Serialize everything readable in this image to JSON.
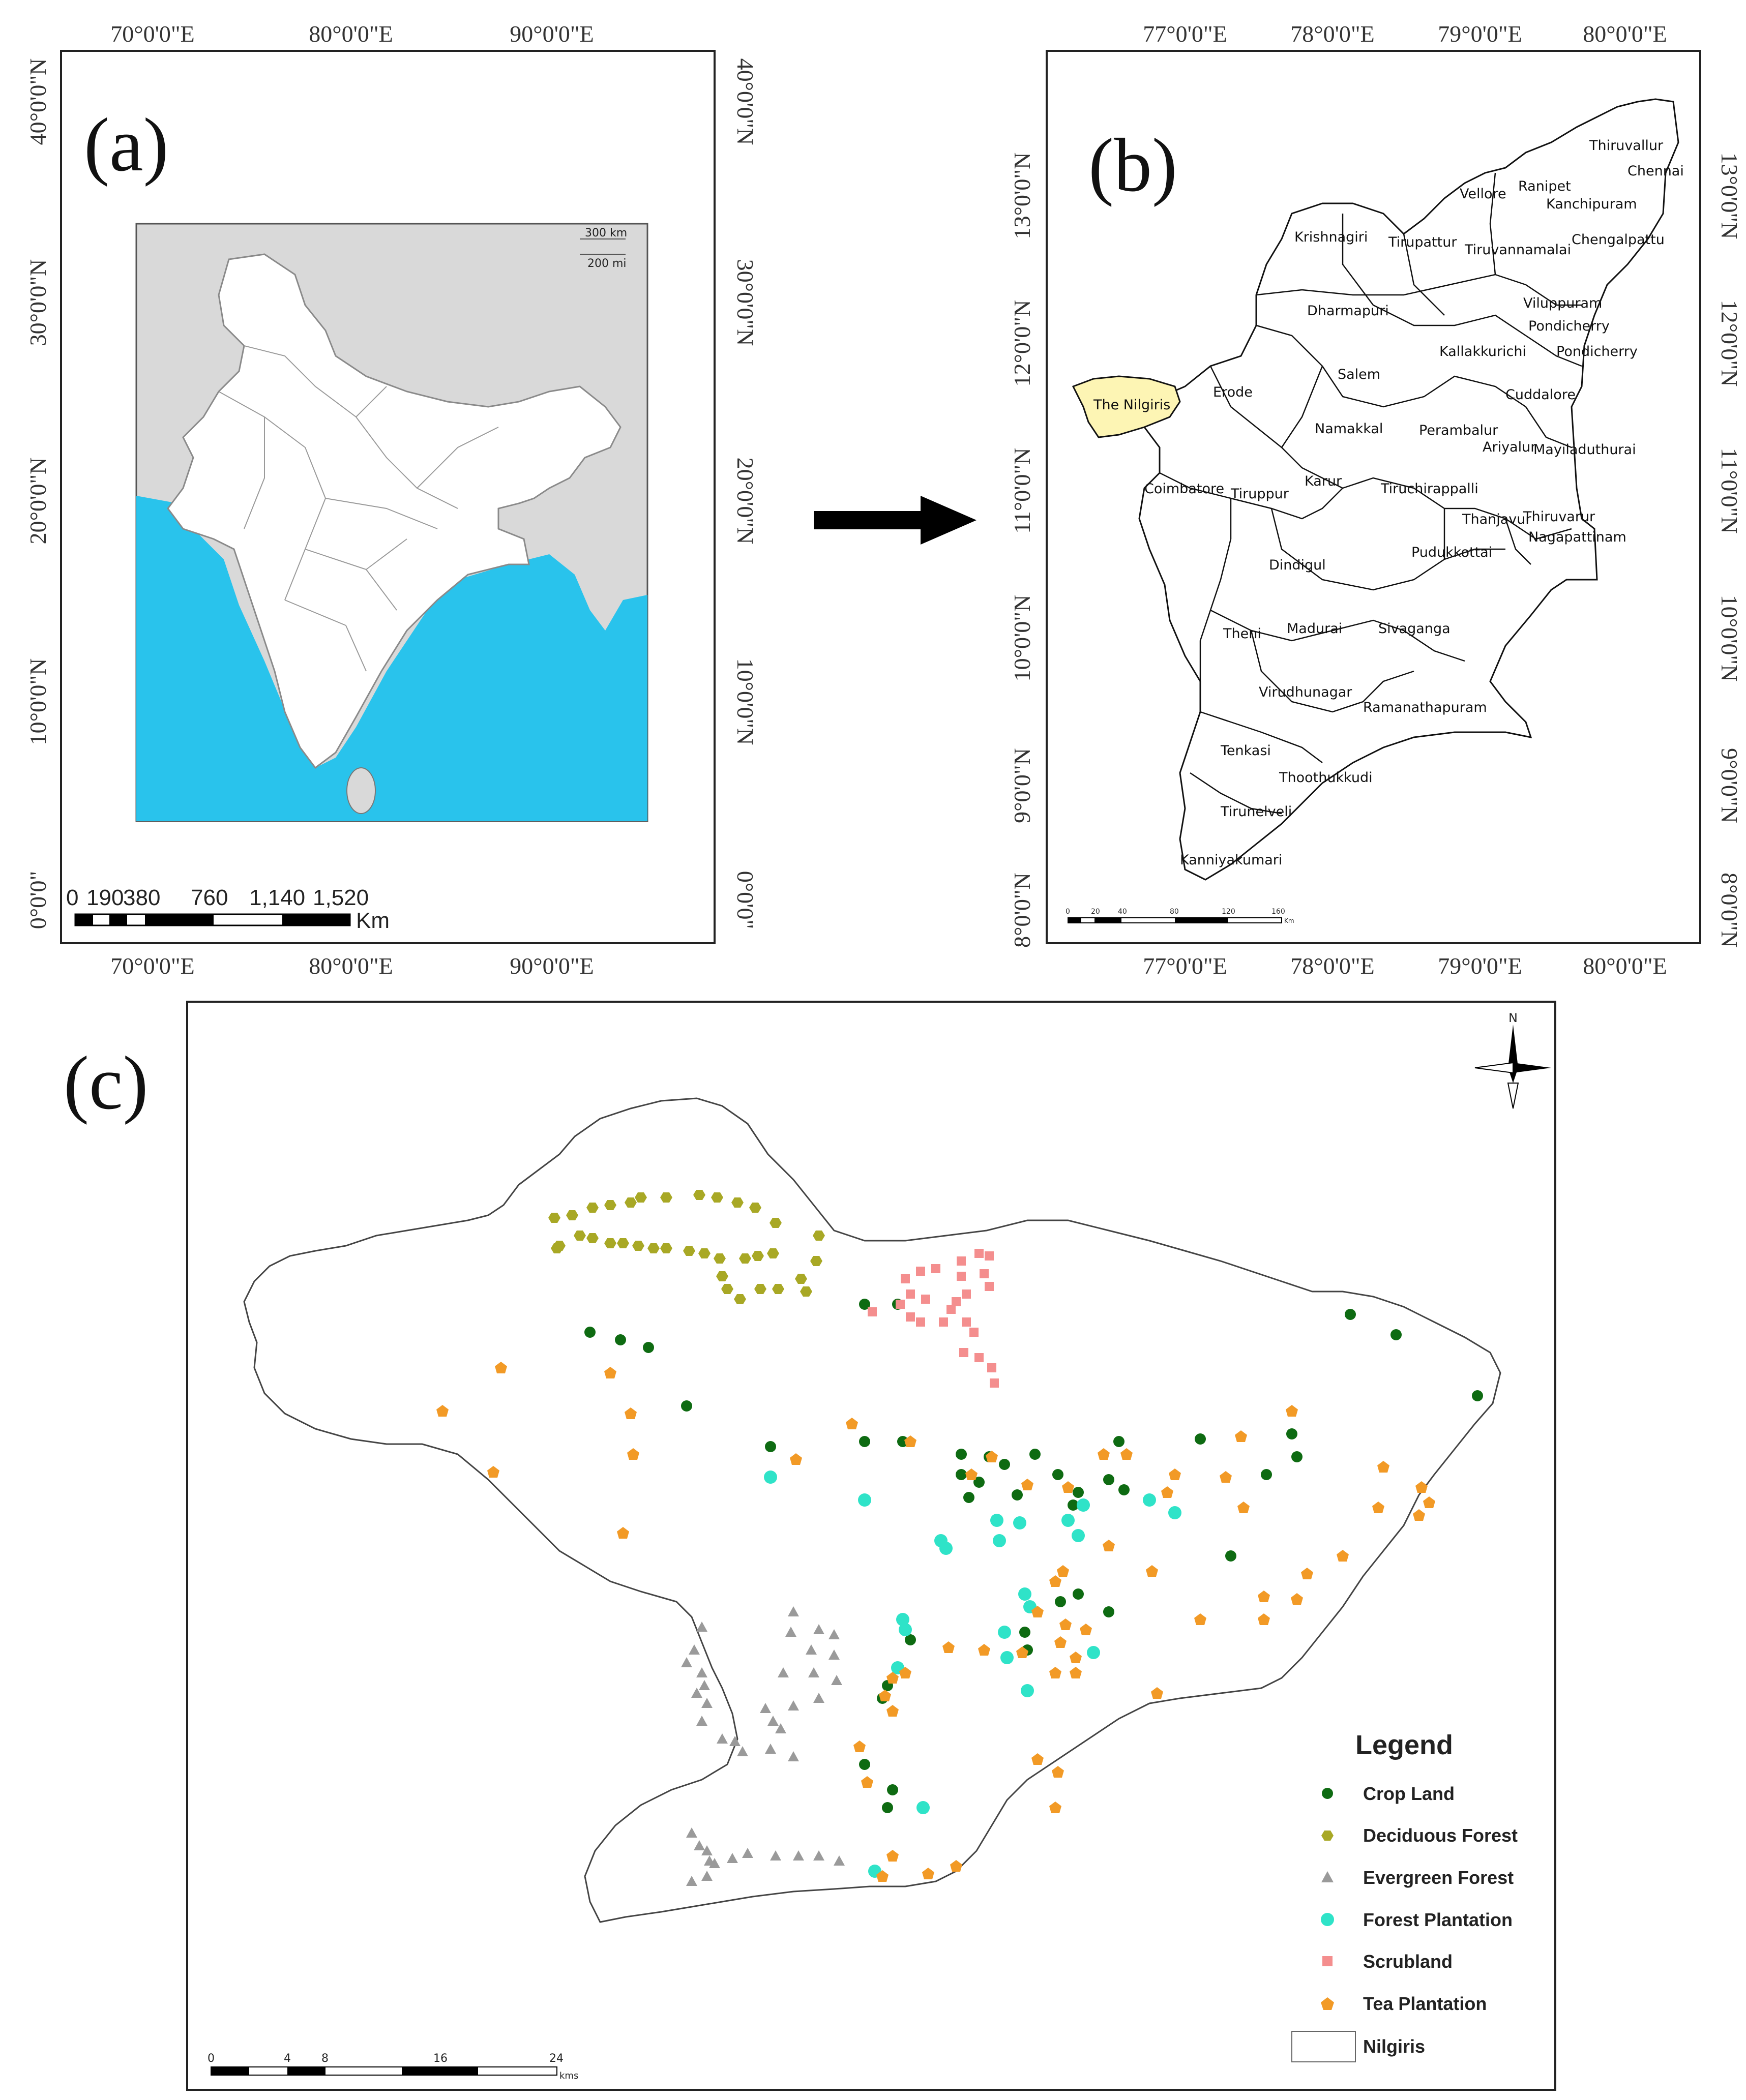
{
  "panel_a": {
    "label": "(a)",
    "top_ticks": [
      "70°0'0\"E",
      "80°0'0\"E",
      "90°0'0\"E"
    ],
    "bottom_ticks": [
      "70°0'0\"E",
      "80°0'0\"E",
      "90°0'0\"E"
    ],
    "lat_ticks": [
      "40°0'0\"N",
      "30°0'0\"N",
      "20°0'0\"N",
      "10°0'0\"N",
      "0°0'0\""
    ],
    "scale_numbers": [
      "0",
      "190",
      "380",
      "760",
      "1,140",
      "1,520"
    ],
    "scale_unit": "Km",
    "inset_scale": [
      "300 km",
      "200 mi"
    ],
    "colors": {
      "ocean": "#29c3ec",
      "land_other": "#d9d9d9",
      "india": "#ffffff"
    }
  },
  "panel_b": {
    "label": "(b)",
    "top_ticks": [
      "77°0'0\"E",
      "78°0'0\"E",
      "79°0'0\"E",
      "80°0'0\"E"
    ],
    "bottom_ticks": [
      "77°0'0\"E",
      "78°0'0\"E",
      "79°0'0\"E",
      "80°0'0\"E"
    ],
    "lat_ticks": [
      "13°0'0\"N",
      "12°0'0\"N",
      "11°0'0\"N",
      "10°0'0\"N",
      "9°0'0\"N",
      "8°0'0\"N"
    ],
    "scale_numbers": [
      "0",
      "20",
      "40",
      "80",
      "120",
      "160"
    ],
    "scale_unit": "Km",
    "highlight_color": "#fdf5b4",
    "districts": [
      "Thiruvallur",
      "Chennai",
      "Ranipet",
      "Vellore",
      "Kanchipuram",
      "Krishnagiri",
      "Tirupattur",
      "Tiruvannamalai",
      "Chengalpattu",
      "Viluppuram",
      "Dharmapuri",
      "Pondicherry",
      "Kallakkurichi",
      "Pondicherry",
      "Salem",
      "The Nilgiris",
      "Erode",
      "Cuddalore",
      "Namakkal",
      "Perambalur",
      "Ariyalur",
      "Mayiladuthurai",
      "Coimbatore",
      "Tiruppur",
      "Karur",
      "Tiruchirappalli",
      "Thanjavur",
      "Thiruvarur",
      "Nagapattinam",
      "Dindigul",
      "Pudukkottai",
      "Theni",
      "Madurai",
      "Sivaganga",
      "Virudhunagar",
      "Ramanathapuram",
      "Tenkasi",
      "Thoothukkudi",
      "Tirunelveli",
      "Kanniyakumari"
    ]
  },
  "panel_c": {
    "label": "(c)",
    "north": "N",
    "legend": {
      "title": "Legend",
      "items": [
        {
          "key": "crop",
          "label": "Crop Land",
          "color": "#0e6b12",
          "icon": "circle-icon"
        },
        {
          "key": "deciduous",
          "label": "Deciduous Forest",
          "color": "#a8a825",
          "icon": "hexagon-icon"
        },
        {
          "key": "evergreen",
          "label": "Evergreen Forest",
          "color": "#9a9a9a",
          "icon": "triangle-icon"
        },
        {
          "key": "plantation",
          "label": "Forest Plantation",
          "color": "#2fe3c8",
          "icon": "circle-icon"
        },
        {
          "key": "scrub",
          "label": "Scrubland",
          "color": "#f48e8e",
          "icon": "square-icon"
        },
        {
          "key": "tea",
          "label": "Tea Plantation",
          "color": "#f29a26",
          "icon": "pentagon-icon"
        },
        {
          "key": "boundary",
          "label": "Nilgiris",
          "color": "#ffffff",
          "icon": "rectangle-icon"
        }
      ]
    },
    "scale_numbers": [
      "0",
      "4",
      "8",
      "16",
      "24"
    ],
    "scale_unit": "kms"
  }
}
